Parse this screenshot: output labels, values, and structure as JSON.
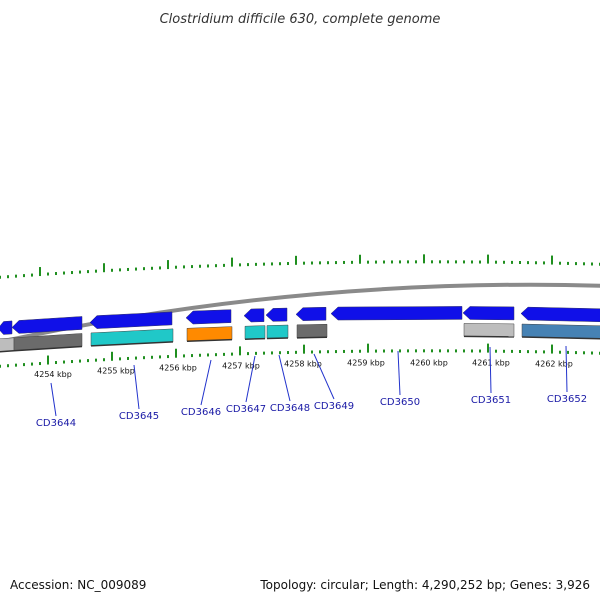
{
  "title": "Clostridium difficile 630, complete genome",
  "footer": {
    "accession": "Accession: NC_009089",
    "summary": "Topology: circular; Length: 4,290,252 bp; Genes: 3,926"
  },
  "colors": {
    "backbone": "#8a8a8a",
    "tick": "#1f8f1f",
    "label_line": "#2233cc",
    "gene_blue": "#1010e8",
    "gene_gray": "#6b6b6b",
    "gene_lightgray": "#bdbdbd",
    "gene_cyan": "#20c8c8",
    "gene_orange": "#ff8a00",
    "gene_steel": "#4682b4"
  },
  "scale_labels": [
    "4254 kbp",
    "4255 kbp",
    "4256 kbp",
    "4257 kbp",
    "4258 kbp",
    "4259 kbp",
    "4260 kbp",
    "4261 kbp",
    "4262 kbp"
  ],
  "gene_labels": [
    "CD3644",
    "CD3645",
    "CD3646",
    "CD3647",
    "CD3648",
    "CD3649",
    "CD3650",
    "CD3651",
    "CD3652"
  ]
}
